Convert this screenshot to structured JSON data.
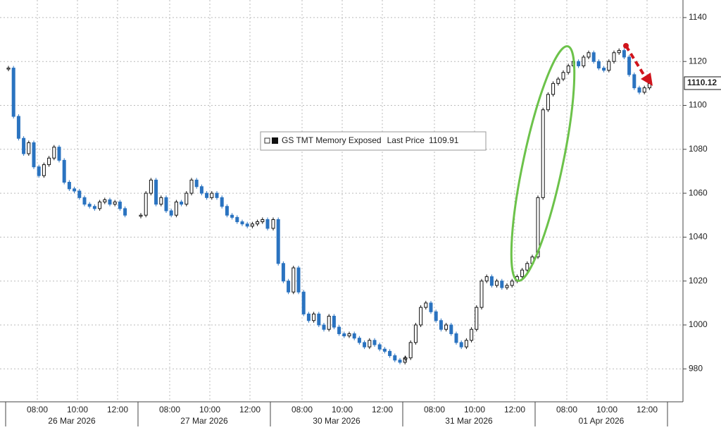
{
  "chart_data": {
    "type": "candlestick",
    "ylim": [
      965,
      1148
    ],
    "yticks": [
      980,
      1000,
      1020,
      1040,
      1060,
      1080,
      1100,
      1120,
      1140
    ],
    "grid": true,
    "up_color": "#111111",
    "down_color": "#2a73c0",
    "series_name": "GS TMT Memory Exposed",
    "legend_text": "Last Price",
    "last_price": 1109.91,
    "current_value": 1110.12,
    "sessions": [
      {
        "date": "26 Mar 2026",
        "times": [
          "08:00",
          "10:00",
          "12:00"
        ],
        "values": [
          1117,
          1095,
          1085,
          1078,
          1083,
          1072,
          1068,
          1073,
          1076,
          1081,
          1075,
          1065,
          1062,
          1061,
          1058,
          1055,
          1054,
          1053,
          1056,
          1057,
          1055,
          1056,
          1053,
          1050
        ]
      },
      {
        "date": "27 Mar 2026",
        "times": [
          "08:00",
          "10:00",
          "12:00"
        ],
        "values": [
          1050,
          1060,
          1066,
          1055,
          1058,
          1052,
          1050,
          1056,
          1055,
          1060,
          1066,
          1063,
          1060,
          1058,
          1060,
          1058,
          1054,
          1050,
          1049,
          1047,
          1046,
          1045,
          1046,
          1047,
          1048,
          1044
        ]
      },
      {
        "date": "30 Mar 2026",
        "times": [
          "08:00",
          "10:00",
          "12:00"
        ],
        "values": [
          1048,
          1028,
          1020,
          1015,
          1026,
          1015,
          1005,
          1002,
          1005,
          1000,
          998,
          1004,
          999,
          996,
          995,
          996,
          994,
          992,
          990,
          993,
          991,
          989,
          988,
          986,
          984,
          983,
          985
        ]
      },
      {
        "date": "31 Mar 2026",
        "times": [
          "08:00",
          "10:00",
          "12:00"
        ],
        "values": [
          985,
          992,
          1000,
          1008,
          1010,
          1006,
          1002,
          998,
          1000,
          996,
          992,
          990,
          993,
          998,
          1008,
          1020,
          1022,
          1018,
          1020,
          1017,
          1018,
          1020,
          1022,
          1025,
          1028,
          1031
        ]
      },
      {
        "date": "01 Apr 2026",
        "times": [
          "08:00",
          "10:00",
          "12:00"
        ],
        "values": [
          1058,
          1098,
          1105,
          1110,
          1112,
          1115,
          1118,
          1120,
          1118,
          1122,
          1124,
          1120,
          1117,
          1116,
          1120,
          1124,
          1125,
          1122,
          1114,
          1108,
          1106,
          1108,
          1110
        ]
      }
    ]
  }
}
